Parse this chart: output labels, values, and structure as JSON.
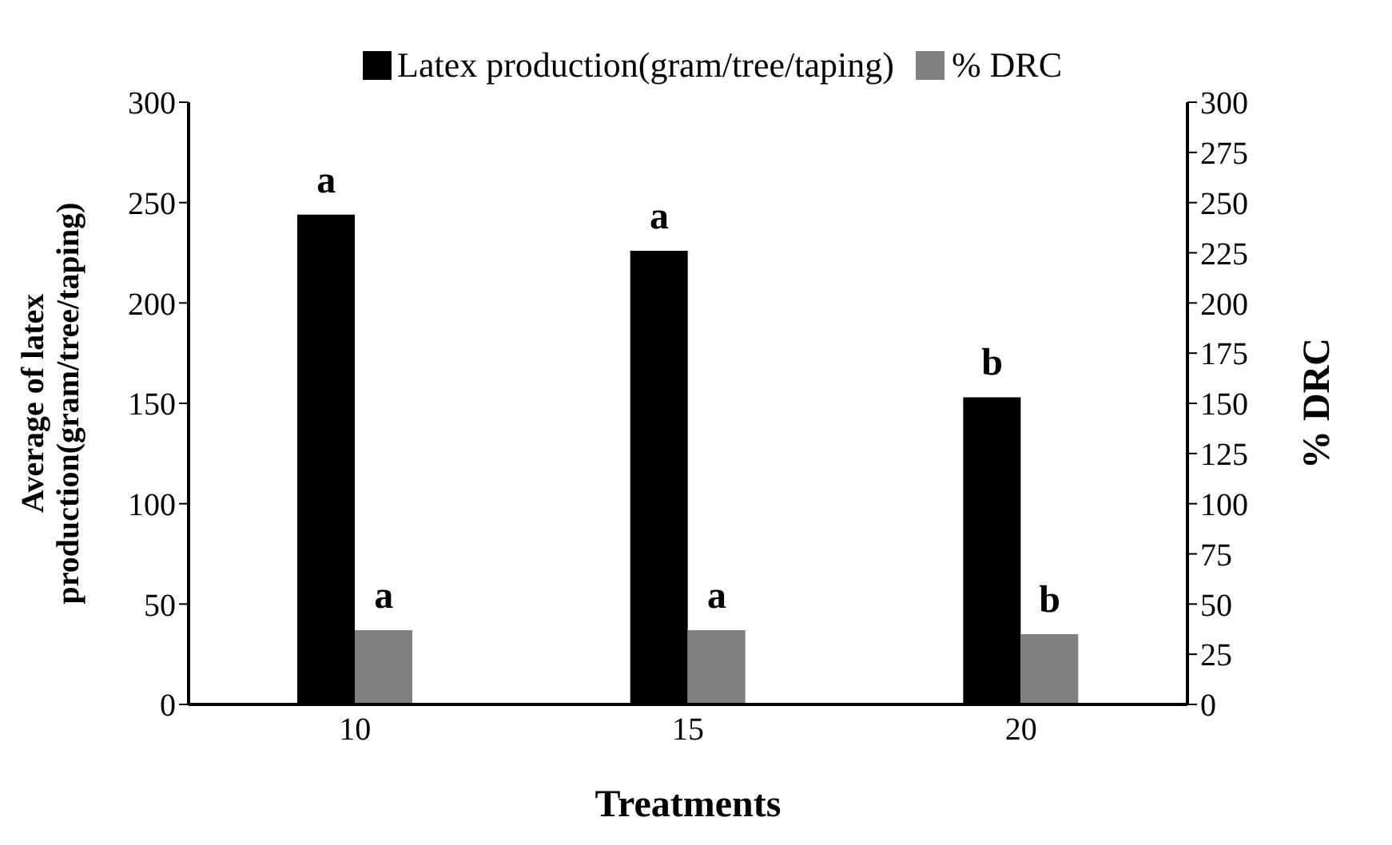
{
  "chart_data": {
    "type": "bar",
    "xlabel": "Treatments",
    "ylabel": "Average of latex\nproduction(gram/tree/taping)",
    "y2label": "% DRC",
    "categories": [
      "10",
      "15",
      "20"
    ],
    "series": [
      {
        "name": "Latex production(gram/tree/taping)",
        "color": "#000000",
        "values": [
          244,
          226,
          153
        ]
      },
      {
        "name": "% DRC",
        "color": "#808080",
        "values": [
          37,
          37,
          35
        ],
        "axis": "y2"
      }
    ],
    "ylim": [
      0,
      300
    ],
    "yticks": [
      0,
      50,
      100,
      150,
      200,
      250,
      300
    ],
    "y2lim": [
      0,
      300
    ],
    "y2ticks": [
      0,
      25,
      50,
      75,
      100,
      125,
      150,
      175,
      200,
      225,
      250,
      275,
      300
    ],
    "grid": false,
    "legend": "top",
    "annotations": [
      {
        "text": "a",
        "x": "10",
        "y": 244
      },
      {
        "text": "a",
        "x": "15",
        "y": 226
      },
      {
        "text": "b",
        "x": "20",
        "y": 153
      },
      {
        "text": "a",
        "x": "10",
        "y": 37
      },
      {
        "text": "a",
        "x": "15",
        "y": 37
      },
      {
        "text": "b",
        "x": "20",
        "y": 35
      }
    ]
  }
}
